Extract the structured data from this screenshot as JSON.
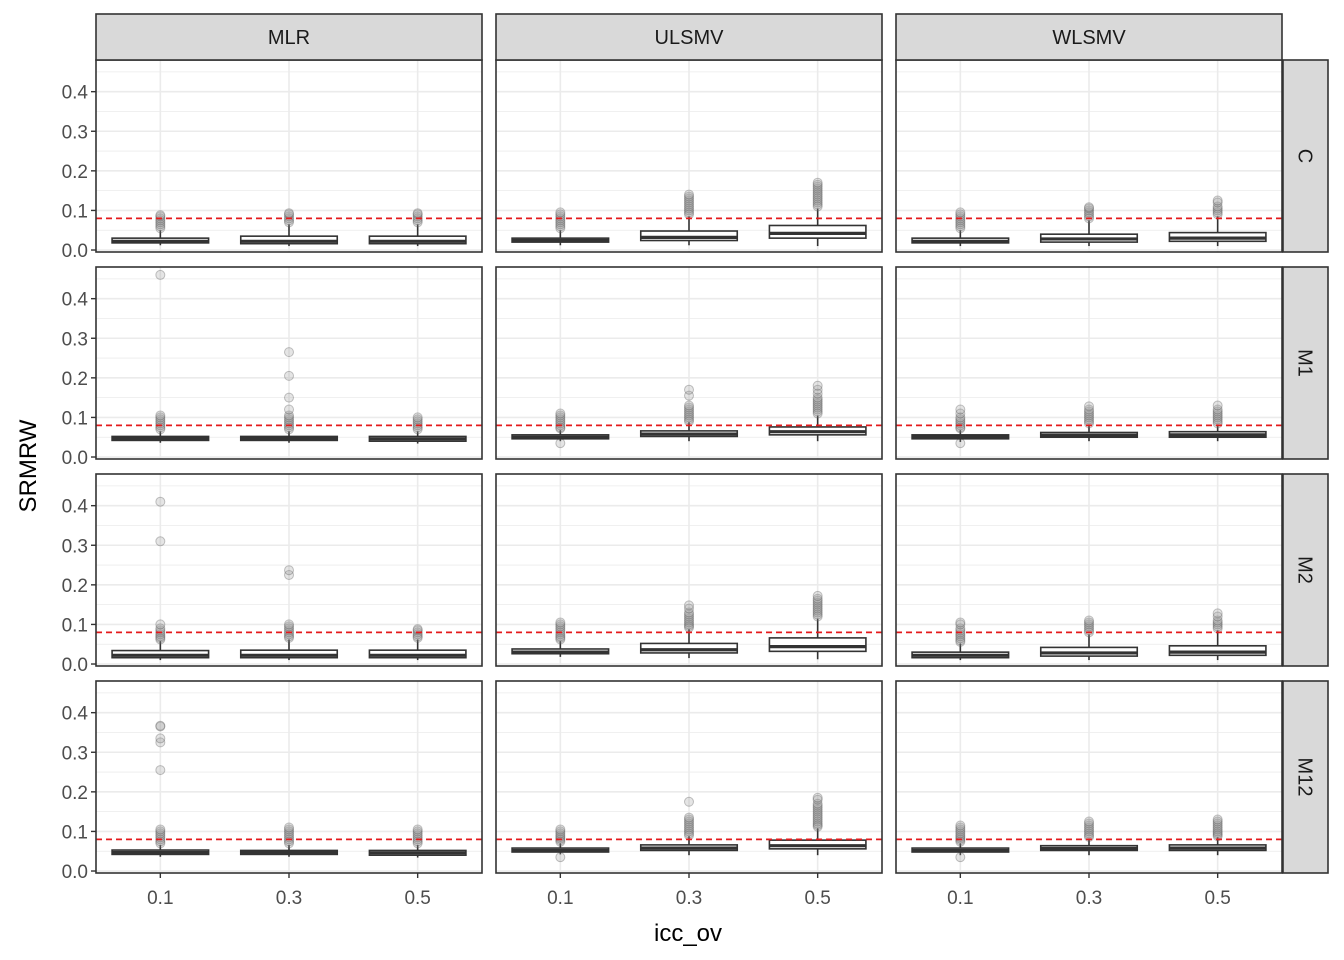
{
  "chart_data": {
    "type": "box",
    "xlabel": "icc_ov",
    "ylabel": "SRMRW",
    "x_categories": [
      "0.1",
      "0.3",
      "0.5"
    ],
    "y_ticks": [
      "0.0",
      "0.1",
      "0.2",
      "0.3",
      "0.4"
    ],
    "ylim": [
      -0.005,
      0.48
    ],
    "grid": true,
    "reference_line": {
      "y": 0.08,
      "color": "#e41a1c",
      "style": "dashed"
    },
    "column_facets": [
      "MLR",
      "ULSMV",
      "WLSMV"
    ],
    "row_facets": [
      "C",
      "M1",
      "M2",
      "M12"
    ],
    "colors": {
      "strip_fill": "#d9d9d9",
      "panel_border": "#333333",
      "box_line": "#333333",
      "grid": "#ebebeb",
      "outlier": "#999999"
    },
    "panels": [
      {
        "row": "C",
        "col": "MLR",
        "boxes": [
          {
            "x": "0.1",
            "lower": 0.012,
            "q1": 0.018,
            "median": 0.022,
            "q3": 0.03,
            "upper": 0.05,
            "outliers": [
              0.055,
              0.06,
              0.065,
              0.07,
              0.075,
              0.08,
              0.085,
              0.088
            ]
          },
          {
            "x": "0.3",
            "lower": 0.01,
            "q1": 0.016,
            "median": 0.022,
            "q3": 0.035,
            "upper": 0.065,
            "outliers": [
              0.07,
              0.075,
              0.08,
              0.085,
              0.09,
              0.093
            ]
          },
          {
            "x": "0.5",
            "lower": 0.01,
            "q1": 0.016,
            "median": 0.022,
            "q3": 0.035,
            "upper": 0.065,
            "outliers": [
              0.07,
              0.075,
              0.08,
              0.085,
              0.09,
              0.093
            ]
          }
        ]
      },
      {
        "row": "C",
        "col": "ULSMV",
        "boxes": [
          {
            "x": "0.1",
            "lower": 0.012,
            "q1": 0.02,
            "median": 0.024,
            "q3": 0.03,
            "upper": 0.05,
            "outliers": [
              0.055,
              0.06,
              0.065,
              0.07,
              0.075,
              0.08,
              0.085,
              0.09,
              0.095
            ]
          },
          {
            "x": "0.3",
            "lower": 0.012,
            "q1": 0.024,
            "median": 0.032,
            "q3": 0.048,
            "upper": 0.085,
            "outliers": [
              0.09,
              0.095,
              0.1,
              0.105,
              0.11,
              0.115,
              0.12,
              0.125,
              0.13,
              0.135,
              0.14
            ]
          },
          {
            "x": "0.5",
            "lower": 0.01,
            "q1": 0.03,
            "median": 0.042,
            "q3": 0.062,
            "upper": 0.105,
            "outliers": [
              0.11,
              0.115,
              0.12,
              0.125,
              0.13,
              0.135,
              0.14,
              0.145,
              0.15,
              0.155,
              0.16,
              0.165,
              0.17
            ]
          }
        ]
      },
      {
        "row": "C",
        "col": "WLSMV",
        "boxes": [
          {
            "x": "0.1",
            "lower": 0.01,
            "q1": 0.018,
            "median": 0.022,
            "q3": 0.03,
            "upper": 0.05,
            "outliers": [
              0.055,
              0.06,
              0.065,
              0.07,
              0.075,
              0.08,
              0.085,
              0.09,
              0.095
            ]
          },
          {
            "x": "0.3",
            "lower": 0.01,
            "q1": 0.02,
            "median": 0.028,
            "q3": 0.04,
            "upper": 0.075,
            "outliers": [
              0.08,
              0.085,
              0.09,
              0.095,
              0.1,
              0.105,
              0.108
            ]
          },
          {
            "x": "0.5",
            "lower": 0.01,
            "q1": 0.022,
            "median": 0.03,
            "q3": 0.044,
            "upper": 0.085,
            "outliers": [
              0.09,
              0.095,
              0.1,
              0.105,
              0.11,
              0.12,
              0.125
            ]
          }
        ]
      },
      {
        "row": "M1",
        "col": "MLR",
        "boxes": [
          {
            "x": "0.1",
            "lower": 0.036,
            "q1": 0.042,
            "median": 0.047,
            "q3": 0.052,
            "upper": 0.065,
            "outliers": [
              0.07,
              0.075,
              0.08,
              0.085,
              0.09,
              0.095,
              0.1,
              0.105,
              0.46
            ]
          },
          {
            "x": "0.3",
            "lower": 0.036,
            "q1": 0.042,
            "median": 0.047,
            "q3": 0.052,
            "upper": 0.065,
            "outliers": [
              0.07,
              0.075,
              0.08,
              0.085,
              0.09,
              0.095,
              0.1,
              0.105,
              0.12,
              0.15,
              0.205,
              0.265
            ]
          },
          {
            "x": "0.5",
            "lower": 0.034,
            "q1": 0.04,
            "median": 0.046,
            "q3": 0.052,
            "upper": 0.065,
            "outliers": [
              0.07,
              0.075,
              0.08,
              0.085,
              0.09,
              0.095,
              0.1
            ]
          }
        ]
      },
      {
        "row": "M1",
        "col": "ULSMV",
        "boxes": [
          {
            "x": "0.1",
            "lower": 0.04,
            "q1": 0.046,
            "median": 0.05,
            "q3": 0.056,
            "upper": 0.068,
            "outliers": [
              0.035,
              0.072,
              0.075,
              0.08,
              0.085,
              0.09,
              0.095,
              0.1,
              0.105,
              0.11
            ]
          },
          {
            "x": "0.3",
            "lower": 0.04,
            "q1": 0.052,
            "median": 0.058,
            "q3": 0.066,
            "upper": 0.088,
            "outliers": [
              0.09,
              0.095,
              0.1,
              0.105,
              0.11,
              0.115,
              0.12,
              0.125,
              0.13,
              0.155,
              0.17
            ]
          },
          {
            "x": "0.5",
            "lower": 0.04,
            "q1": 0.056,
            "median": 0.064,
            "q3": 0.076,
            "upper": 0.105,
            "outliers": [
              0.11,
              0.115,
              0.12,
              0.125,
              0.13,
              0.135,
              0.14,
              0.145,
              0.15,
              0.16,
              0.17,
              0.18
            ]
          }
        ]
      },
      {
        "row": "M1",
        "col": "WLSMV",
        "boxes": [
          {
            "x": "0.1",
            "lower": 0.038,
            "q1": 0.046,
            "median": 0.051,
            "q3": 0.056,
            "upper": 0.068,
            "outliers": [
              0.035,
              0.072,
              0.075,
              0.08,
              0.085,
              0.09,
              0.095,
              0.1,
              0.11,
              0.12
            ]
          },
          {
            "x": "0.3",
            "lower": 0.04,
            "q1": 0.05,
            "median": 0.055,
            "q3": 0.062,
            "upper": 0.08,
            "outliers": [
              0.085,
              0.09,
              0.095,
              0.1,
              0.105,
              0.11,
              0.115,
              0.12,
              0.128
            ]
          },
          {
            "x": "0.5",
            "lower": 0.04,
            "q1": 0.05,
            "median": 0.056,
            "q3": 0.064,
            "upper": 0.082,
            "outliers": [
              0.085,
              0.09,
              0.095,
              0.1,
              0.105,
              0.11,
              0.115,
              0.12,
              0.13
            ]
          }
        ]
      },
      {
        "row": "M2",
        "col": "MLR",
        "boxes": [
          {
            "x": "0.1",
            "lower": 0.01,
            "q1": 0.016,
            "median": 0.022,
            "q3": 0.034,
            "upper": 0.058,
            "outliers": [
              0.062,
              0.066,
              0.07,
              0.075,
              0.08,
              0.085,
              0.09,
              0.1,
              0.31,
              0.41
            ]
          },
          {
            "x": "0.3",
            "lower": 0.01,
            "q1": 0.016,
            "median": 0.022,
            "q3": 0.035,
            "upper": 0.062,
            "outliers": [
              0.066,
              0.07,
              0.075,
              0.08,
              0.085,
              0.09,
              0.095,
              0.1,
              0.225,
              0.237
            ]
          },
          {
            "x": "0.5",
            "lower": 0.01,
            "q1": 0.016,
            "median": 0.022,
            "q3": 0.035,
            "upper": 0.062,
            "outliers": [
              0.066,
              0.07,
              0.075,
              0.08,
              0.085,
              0.088
            ]
          }
        ]
      },
      {
        "row": "M2",
        "col": "ULSMV",
        "boxes": [
          {
            "x": "0.1",
            "lower": 0.018,
            "q1": 0.026,
            "median": 0.03,
            "q3": 0.038,
            "upper": 0.058,
            "outliers": [
              0.062,
              0.066,
              0.07,
              0.075,
              0.08,
              0.085,
              0.09,
              0.095,
              0.1,
              0.105
            ]
          },
          {
            "x": "0.3",
            "lower": 0.015,
            "q1": 0.028,
            "median": 0.036,
            "q3": 0.052,
            "upper": 0.088,
            "outliers": [
              0.092,
              0.096,
              0.1,
              0.105,
              0.11,
              0.115,
              0.12,
              0.125,
              0.13,
              0.14,
              0.148
            ]
          },
          {
            "x": "0.5",
            "lower": 0.012,
            "q1": 0.032,
            "median": 0.044,
            "q3": 0.066,
            "upper": 0.115,
            "outliers": [
              0.12,
              0.125,
              0.13,
              0.135,
              0.14,
              0.145,
              0.15,
              0.155,
              0.16,
              0.165,
              0.172
            ]
          }
        ]
      },
      {
        "row": "M2",
        "col": "WLSMV",
        "boxes": [
          {
            "x": "0.1",
            "lower": 0.01,
            "q1": 0.016,
            "median": 0.022,
            "q3": 0.03,
            "upper": 0.052,
            "outliers": [
              0.056,
              0.06,
              0.065,
              0.07,
              0.075,
              0.08,
              0.085,
              0.09,
              0.1,
              0.105
            ]
          },
          {
            "x": "0.3",
            "lower": 0.01,
            "q1": 0.02,
            "median": 0.028,
            "q3": 0.042,
            "upper": 0.075,
            "outliers": [
              0.08,
              0.085,
              0.09,
              0.095,
              0.1,
              0.105,
              0.11
            ]
          },
          {
            "x": "0.5",
            "lower": 0.01,
            "q1": 0.022,
            "median": 0.03,
            "q3": 0.046,
            "upper": 0.085,
            "outliers": [
              0.09,
              0.095,
              0.1,
              0.105,
              0.11,
              0.12,
              0.128
            ]
          }
        ]
      },
      {
        "row": "M12",
        "col": "MLR",
        "boxes": [
          {
            "x": "0.1",
            "lower": 0.036,
            "q1": 0.042,
            "median": 0.047,
            "q3": 0.053,
            "upper": 0.066,
            "outliers": [
              0.07,
              0.075,
              0.08,
              0.085,
              0.09,
              0.095,
              0.1,
              0.105,
              0.255,
              0.325,
              0.335,
              0.365,
              0.367
            ]
          },
          {
            "x": "0.3",
            "lower": 0.036,
            "q1": 0.042,
            "median": 0.047,
            "q3": 0.052,
            "upper": 0.066,
            "outliers": [
              0.07,
              0.075,
              0.08,
              0.085,
              0.09,
              0.095,
              0.1,
              0.105,
              0.11
            ]
          },
          {
            "x": "0.5",
            "lower": 0.034,
            "q1": 0.04,
            "median": 0.046,
            "q3": 0.052,
            "upper": 0.066,
            "outliers": [
              0.07,
              0.075,
              0.08,
              0.085,
              0.09,
              0.095,
              0.1,
              0.105
            ]
          }
        ]
      },
      {
        "row": "M12",
        "col": "ULSMV",
        "boxes": [
          {
            "x": "0.1",
            "lower": 0.042,
            "q1": 0.048,
            "median": 0.052,
            "q3": 0.058,
            "upper": 0.07,
            "outliers": [
              0.035,
              0.074,
              0.078,
              0.082,
              0.086,
              0.09,
              0.095,
              0.1,
              0.105
            ]
          },
          {
            "x": "0.3",
            "lower": 0.04,
            "q1": 0.052,
            "median": 0.058,
            "q3": 0.066,
            "upper": 0.088,
            "outliers": [
              0.09,
              0.095,
              0.1,
              0.105,
              0.11,
              0.115,
              0.12,
              0.125,
              0.13,
              0.135,
              0.175
            ]
          },
          {
            "x": "0.5",
            "lower": 0.04,
            "q1": 0.056,
            "median": 0.064,
            "q3": 0.078,
            "upper": 0.108,
            "outliers": [
              0.112,
              0.116,
              0.12,
              0.125,
              0.13,
              0.135,
              0.14,
              0.145,
              0.15,
              0.155,
              0.16,
              0.165,
              0.17,
              0.18,
              0.185
            ]
          }
        ]
      },
      {
        "row": "M12",
        "col": "WLSMV",
        "boxes": [
          {
            "x": "0.1",
            "lower": 0.04,
            "q1": 0.048,
            "median": 0.052,
            "q3": 0.058,
            "upper": 0.07,
            "outliers": [
              0.035,
              0.074,
              0.078,
              0.082,
              0.086,
              0.09,
              0.095,
              0.1,
              0.105,
              0.11,
              0.115
            ]
          },
          {
            "x": "0.3",
            "lower": 0.04,
            "q1": 0.052,
            "median": 0.057,
            "q3": 0.064,
            "upper": 0.082,
            "outliers": [
              0.086,
              0.09,
              0.095,
              0.1,
              0.105,
              0.11,
              0.115,
              0.12,
              0.125
            ]
          },
          {
            "x": "0.5",
            "lower": 0.04,
            "q1": 0.052,
            "median": 0.058,
            "q3": 0.066,
            "upper": 0.085,
            "outliers": [
              0.088,
              0.092,
              0.096,
              0.1,
              0.105,
              0.11,
              0.115,
              0.12,
              0.125,
              0.13
            ]
          }
        ]
      }
    ]
  }
}
